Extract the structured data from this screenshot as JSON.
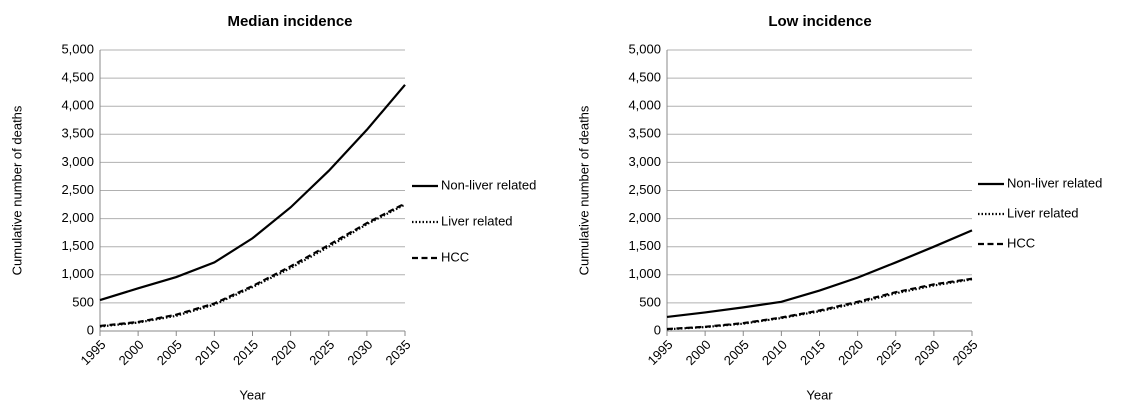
{
  "chart_data": [
    {
      "type": "line",
      "title": "Median incidence",
      "x_label": "Year",
      "y_label": "Cumulative number of deaths",
      "x": [
        1995,
        2000,
        2005,
        2010,
        2015,
        2020,
        2025,
        2030,
        2035
      ],
      "xlim": [
        1995,
        2035
      ],
      "xticks": [
        1995,
        2000,
        2005,
        2010,
        2015,
        2020,
        2025,
        2030,
        2035
      ],
      "ylim": [
        0,
        5000
      ],
      "yticks": [
        0,
        500,
        {
          "value": 1000,
          "label": "1,000"
        },
        {
          "value": 1500,
          "label": "1,500"
        },
        {
          "value": 2000,
          "label": "2,000"
        },
        {
          "value": 2500,
          "label": "2,500"
        },
        {
          "value": 3000,
          "label": "3,000"
        },
        {
          "value": 3500,
          "label": "3,500"
        },
        {
          "value": 4000,
          "label": "4,000"
        },
        {
          "value": 4500,
          "label": "4,500"
        },
        {
          "value": 5000,
          "label": "5,000"
        }
      ],
      "grid": true,
      "legend": "right",
      "series": [
        {
          "name": "Non-liver related",
          "color": "#000000",
          "style": "solid",
          "values": [
            550,
            760,
            960,
            1220,
            1650,
            2200,
            2850,
            3580,
            4380
          ]
        },
        {
          "name": "Liver related",
          "color": "#000000",
          "style": "dotted",
          "values": [
            80,
            150,
            270,
            470,
            780,
            1120,
            1500,
            1900,
            2250
          ]
        },
        {
          "name": "HCC",
          "color": "#000000",
          "style": "dashed",
          "values": [
            90,
            160,
            290,
            490,
            800,
            1150,
            1530,
            1920,
            2270
          ]
        }
      ]
    },
    {
      "type": "line",
      "title": "Low incidence",
      "x_label": "Year",
      "y_label": "Cumulative number of deaths",
      "x": [
        1995,
        2000,
        2005,
        2010,
        2015,
        2020,
        2025,
        2030,
        2035
      ],
      "xlim": [
        1995,
        2035
      ],
      "xticks": [
        1995,
        2000,
        2005,
        2010,
        2015,
        2020,
        2025,
        2030,
        2035
      ],
      "ylim": [
        0,
        5000
      ],
      "yticks": [
        0,
        500,
        {
          "value": 1000,
          "label": "1,000"
        },
        {
          "value": 1500,
          "label": "1,500"
        },
        {
          "value": 2000,
          "label": "2,000"
        },
        {
          "value": 2500,
          "label": "2,500"
        },
        {
          "value": 3000,
          "label": "3,000"
        },
        {
          "value": 3500,
          "label": "3,500"
        },
        {
          "value": 4000,
          "label": "4,000"
        },
        {
          "value": 4500,
          "label": "4,500"
        },
        {
          "value": 5000,
          "label": "5,000"
        }
      ],
      "grid": true,
      "legend": "right",
      "series": [
        {
          "name": "Non-liver related",
          "color": "#000000",
          "style": "solid",
          "values": [
            250,
            330,
            420,
            520,
            720,
            950,
            1220,
            1500,
            1790
          ]
        },
        {
          "name": "Liver related",
          "color": "#000000",
          "style": "dotted",
          "values": [
            30,
            70,
            130,
            230,
            350,
            500,
            670,
            810,
            920
          ]
        },
        {
          "name": "HCC",
          "color": "#000000",
          "style": "dashed",
          "values": [
            35,
            75,
            140,
            240,
            365,
            520,
            690,
            830,
            930
          ]
        }
      ]
    }
  ]
}
